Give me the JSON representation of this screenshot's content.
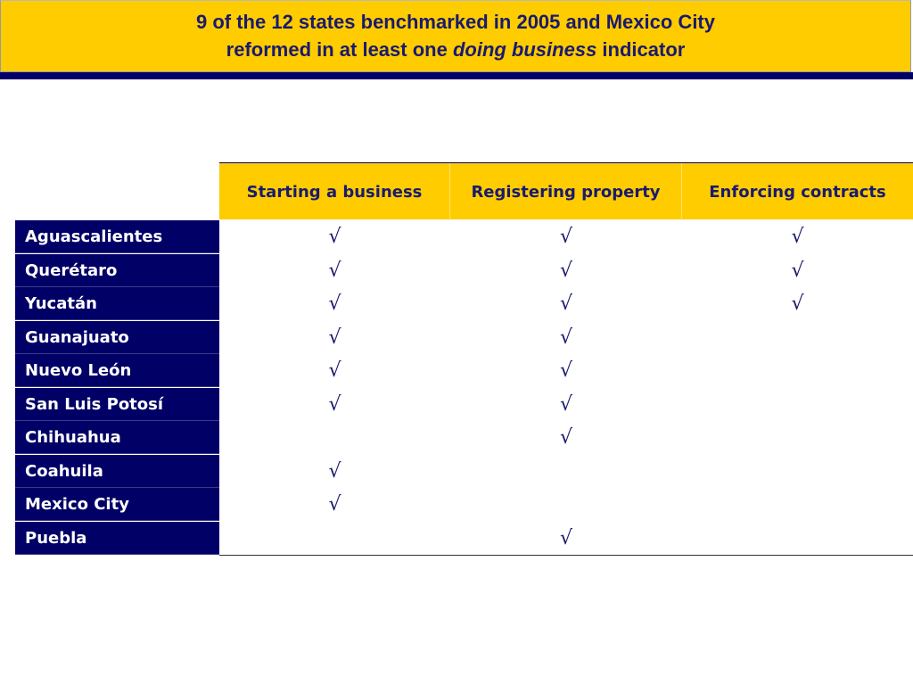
{
  "title": {
    "line1": "9 of the 12 states benchmarked in 2005 and Mexico City",
    "line2_prefix": "reformed in at least one ",
    "line2_emphasis": "doing business",
    "line2_suffix": " indicator"
  },
  "table": {
    "headers": [
      "Starting a business",
      "Registering property",
      "Enforcing contracts"
    ],
    "check_glyph": "√",
    "rows": [
      {
        "state": "Aguascalientes",
        "checks": [
          true,
          true,
          true
        ]
      },
      {
        "state": "Querétaro",
        "checks": [
          true,
          true,
          true
        ]
      },
      {
        "state": "Yucatán",
        "checks": [
          true,
          true,
          true
        ]
      },
      {
        "state": "Guanajuato",
        "checks": [
          true,
          true,
          false
        ]
      },
      {
        "state": "Nuevo León",
        "checks": [
          true,
          true,
          false
        ]
      },
      {
        "state": "San Luis Potosí",
        "checks": [
          true,
          true,
          false
        ]
      },
      {
        "state": "Chihuahua",
        "checks": [
          false,
          true,
          false
        ]
      },
      {
        "state": "Coahuila",
        "checks": [
          true,
          false,
          false
        ]
      },
      {
        "state": "Mexico City",
        "checks": [
          true,
          false,
          false
        ]
      },
      {
        "state": "Puebla",
        "checks": [
          false,
          true,
          false
        ]
      }
    ]
  },
  "colors": {
    "title_background": "#ffcc00",
    "title_text": "#1a1a6e",
    "row_label_background": "#000066",
    "row_label_text": "#ffffff"
  }
}
